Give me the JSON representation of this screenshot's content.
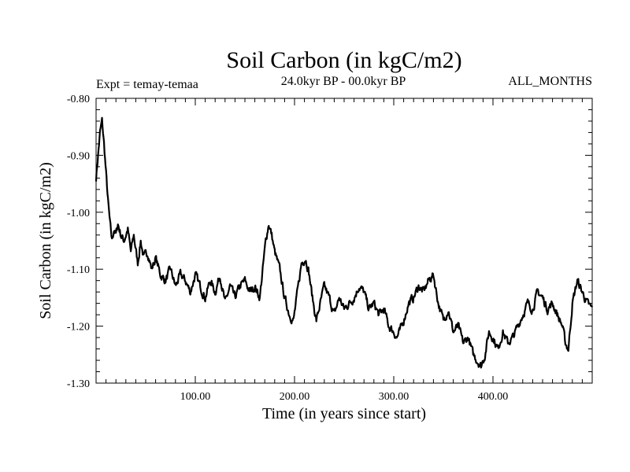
{
  "chart_data": {
    "type": "line",
    "title": "Soil Carbon (in kgC/m2)",
    "expt_label": "Expt = temay-temaa",
    "period_label": "24.0kyr BP - 00.0kyr BP",
    "months_label": "ALL_MONTHS",
    "xlabel": "Time (in years since start)",
    "ylabel": "Soil Carbon (in kgC/m2)",
    "xlim": [
      0,
      500
    ],
    "ylim": [
      -1.3,
      -0.8
    ],
    "xticks": [
      100,
      200,
      300,
      400
    ],
    "xtick_labels": [
      "100.00",
      "200.00",
      "300.00",
      "400.00"
    ],
    "yticks": [
      -1.3,
      -1.2,
      -1.1,
      -1.0,
      -0.9,
      -0.8
    ],
    "ytick_labels": [
      "-1.30",
      "-1.20",
      "-1.10",
      "-1.00",
      "-0.90",
      "-0.80"
    ],
    "grid": false,
    "series": [
      {
        "name": "Soil Carbon",
        "color": "#000000",
        "x": [
          0,
          2,
          4,
          6,
          8,
          10,
          12,
          14,
          16,
          18,
          20,
          22,
          25,
          28,
          32,
          35,
          38,
          42,
          45,
          48,
          52,
          56,
          60,
          65,
          70,
          75,
          80,
          85,
          90,
          95,
          100,
          105,
          110,
          115,
          120,
          125,
          130,
          135,
          140,
          145,
          150,
          155,
          160,
          165,
          168,
          171,
          174,
          177,
          180,
          185,
          190,
          195,
          199,
          203,
          207,
          211,
          214,
          218,
          222,
          226,
          230,
          235,
          240,
          245,
          250,
          255,
          260,
          265,
          270,
          275,
          280,
          285,
          290,
          295,
          300,
          303,
          306,
          310,
          315,
          320,
          325,
          330,
          335,
          340,
          345,
          350,
          355,
          360,
          365,
          370,
          375,
          380,
          384,
          388,
          392,
          396,
          400,
          405,
          410,
          415,
          420,
          425,
          430,
          435,
          440,
          445,
          450,
          455,
          460,
          465,
          470,
          473,
          476,
          480,
          485,
          490,
          495,
          500
        ],
        "values": [
          -0.94,
          -0.9,
          -0.86,
          -0.84,
          -0.88,
          -0.93,
          -0.98,
          -1.02,
          -1.05,
          -1.03,
          -1.04,
          -1.02,
          -1.04,
          -1.05,
          -1.03,
          -1.07,
          -1.04,
          -1.09,
          -1.05,
          -1.08,
          -1.07,
          -1.1,
          -1.08,
          -1.11,
          -1.12,
          -1.1,
          -1.13,
          -1.11,
          -1.12,
          -1.14,
          -1.11,
          -1.13,
          -1.15,
          -1.12,
          -1.14,
          -1.11,
          -1.16,
          -1.13,
          -1.15,
          -1.13,
          -1.12,
          -1.14,
          -1.13,
          -1.15,
          -1.1,
          -1.05,
          -1.02,
          -1.04,
          -1.07,
          -1.1,
          -1.15,
          -1.18,
          -1.19,
          -1.14,
          -1.09,
          -1.08,
          -1.1,
          -1.15,
          -1.19,
          -1.16,
          -1.13,
          -1.15,
          -1.18,
          -1.15,
          -1.17,
          -1.16,
          -1.15,
          -1.13,
          -1.14,
          -1.17,
          -1.16,
          -1.18,
          -1.17,
          -1.2,
          -1.21,
          -1.22,
          -1.21,
          -1.19,
          -1.16,
          -1.15,
          -1.13,
          -1.14,
          -1.12,
          -1.11,
          -1.16,
          -1.19,
          -1.17,
          -1.21,
          -1.2,
          -1.23,
          -1.22,
          -1.25,
          -1.26,
          -1.27,
          -1.25,
          -1.21,
          -1.22,
          -1.24,
          -1.21,
          -1.23,
          -1.22,
          -1.2,
          -1.18,
          -1.16,
          -1.17,
          -1.14,
          -1.15,
          -1.17,
          -1.16,
          -1.18,
          -1.2,
          -1.23,
          -1.24,
          -1.16,
          -1.12,
          -1.14,
          -1.16,
          -1.17
        ]
      }
    ]
  }
}
